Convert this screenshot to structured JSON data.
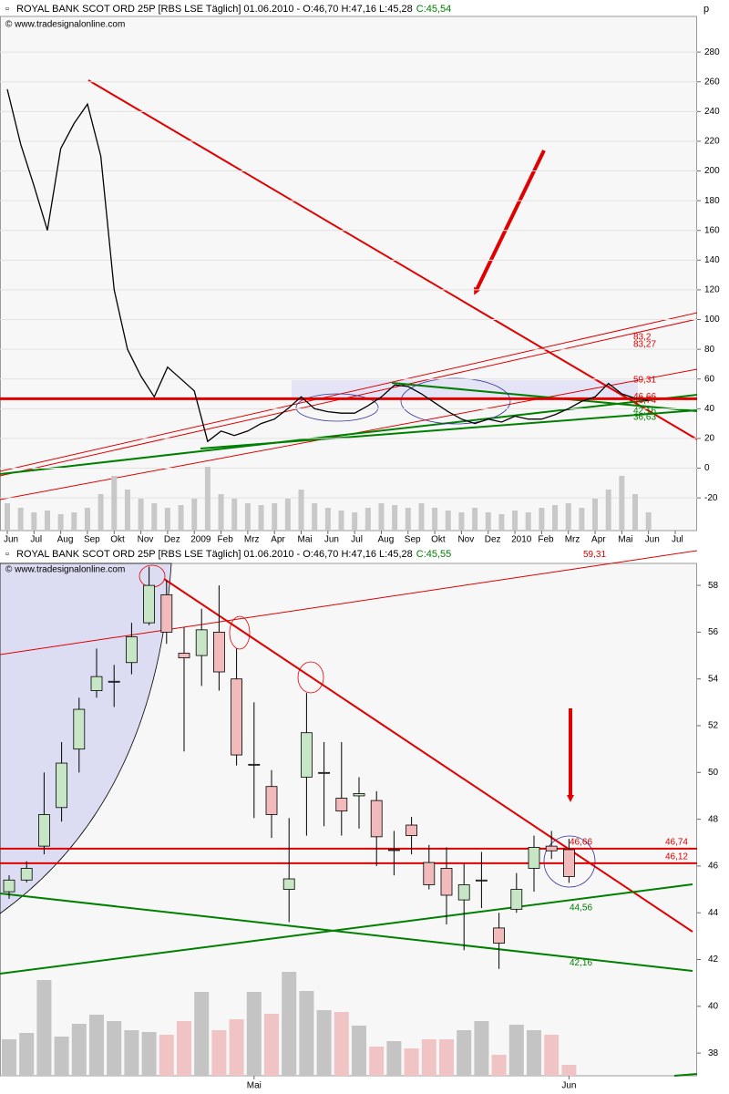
{
  "chart_data": [
    {
      "type": "line",
      "title": "ROYAL BANK SCOT ORD 25P [RBS LSE  Täglich] 01.06.2010 - O:46,70 H:47,16 L:45,28",
      "close_label": "C:45,54",
      "source": "© www.tradesignalonline.com",
      "unit": "p",
      "categories": [
        "Jun",
        null,
        "Jul",
        null,
        "Aug",
        null,
        "Sep",
        null,
        "Okt",
        null,
        "Nov",
        null,
        "Dez",
        null,
        "2009",
        null,
        "Feb",
        null,
        "Mrz",
        null,
        "Apr",
        null,
        "Mai",
        null,
        "Jun",
        null,
        "Jul",
        null,
        "Aug",
        null,
        "Sep",
        null,
        "Okt",
        null,
        "Nov",
        null,
        "Dez",
        null,
        "2010",
        null,
        "Feb",
        null,
        "Mrz",
        null,
        "Apr",
        null,
        "Mai",
        null,
        "Jun",
        null,
        "Jul",
        null
      ],
      "series": [
        {
          "name": "RBS",
          "color": "#000000",
          "values": [
            255,
            218,
            190,
            160,
            215,
            232,
            245,
            210,
            120,
            80,
            62,
            48,
            68,
            60,
            52,
            18,
            25,
            22,
            25,
            30,
            33,
            40,
            48,
            40,
            38,
            37,
            37,
            42,
            48,
            56,
            55,
            50,
            44,
            38,
            33,
            30,
            33,
            31,
            35,
            33,
            33,
            36,
            40,
            45,
            48,
            57,
            50,
            47,
            45.54,
            null,
            null,
            null
          ]
        },
        {
          "name": "Volume",
          "color": "#c8c8c8",
          "values": [
            30,
            25,
            20,
            22,
            18,
            20,
            25,
            40,
            60,
            45,
            35,
            30,
            25,
            28,
            35,
            70,
            40,
            35,
            30,
            28,
            30,
            35,
            45,
            30,
            25,
            22,
            20,
            25,
            30,
            28,
            25,
            30,
            25,
            22,
            20,
            25,
            20,
            18,
            22,
            20,
            25,
            28,
            30,
            25,
            35,
            45,
            60,
            40,
            20,
            null,
            null,
            null
          ]
        }
      ],
      "ylim": [
        -42,
        304
      ],
      "yticks": [
        -20,
        0,
        20,
        40,
        60,
        80,
        100,
        120,
        140,
        160,
        180,
        200,
        220,
        240,
        260,
        280
      ],
      "grid": true,
      "reference_line": {
        "value": 46.74,
        "color": "#e00000"
      },
      "annotations": [
        {
          "value": 83.2,
          "label": "83,2",
          "color": "#e00000"
        },
        {
          "value": 83.27,
          "label": "83,27",
          "color": "#e00000"
        },
        {
          "value": 59.31,
          "label": "59,31",
          "color": "#e00000"
        },
        {
          "value": 46.66,
          "label": "46,66",
          "color": "#e00000"
        },
        {
          "value": 46.74,
          "label": "46,74",
          "color": "#e00000"
        },
        {
          "value": 42.16,
          "label": "42,16",
          "color": "#008000"
        },
        {
          "value": 36.63,
          "label": "36,63",
          "color": "#008000"
        }
      ]
    },
    {
      "type": "candlestick",
      "title": "ROYAL BANK SCOT ORD 25P [RBS LSE  Täglich] 01.06.2010 - O:46,70 H:47,16 L:45,28",
      "close_label": "C:45,55",
      "source": "© www.tradesignalonline.com",
      "categories": [
        null,
        null,
        null,
        null,
        null,
        null,
        null,
        null,
        null,
        null,
        null,
        null,
        null,
        null,
        "Mai",
        null,
        null,
        null,
        null,
        null,
        null,
        null,
        null,
        null,
        null,
        null,
        null,
        null,
        null,
        null,
        null,
        null,
        "Jun"
      ],
      "open": [
        44.9,
        45.4,
        46.85,
        48.5,
        51.0,
        53.5,
        53.9,
        54.7,
        56.4,
        57.6,
        55.1,
        55.0,
        56.0,
        54.0,
        50.35,
        49.4,
        45.0,
        49.8,
        50.0,
        48.9,
        49.0,
        48.8,
        46.7,
        47.75,
        46.15,
        45.9,
        44.55,
        45.4,
        43.35,
        44.15,
        45.9,
        46.85,
        46.7
      ],
      "high": [
        45.6,
        46.2,
        50.0,
        51.3,
        53.2,
        55.3,
        54.6,
        56.4,
        58.8,
        58.2,
        56.2,
        57.0,
        58.0,
        55.3,
        53.0,
        50.1,
        48.05,
        53.4,
        51.3,
        51.3,
        49.8,
        49.2,
        47.5,
        48.1,
        46.9,
        46.8,
        46.1,
        46.6,
        44.0,
        45.7,
        47.3,
        47.5,
        47.16
      ],
      "low": [
        44.6,
        45.3,
        46.5,
        47.9,
        50.0,
        53.2,
        52.8,
        54.2,
        56.3,
        55.5,
        50.9,
        53.7,
        53.5,
        50.3,
        48.05,
        47.2,
        43.6,
        47.3,
        47.7,
        47.3,
        47.6,
        46.0,
        45.6,
        46.5,
        45.0,
        43.5,
        42.4,
        44.2,
        41.6,
        44.0,
        44.9,
        46.3,
        45.28
      ],
      "close": [
        45.4,
        45.9,
        48.2,
        50.4,
        52.7,
        54.1,
        53.9,
        55.8,
        58.0,
        56.0,
        54.9,
        56.1,
        54.3,
        50.75,
        50.35,
        48.2,
        45.45,
        51.7,
        50.0,
        48.35,
        49.1,
        47.25,
        46.7,
        47.3,
        45.2,
        44.75,
        45.2,
        45.4,
        42.7,
        45.0,
        46.8,
        46.65,
        45.55
      ],
      "up_color": "#c6e6c6",
      "down_color": "#f2baba",
      "volume": {
        "values": [
          40,
          47,
          105,
          43,
          57,
          67,
          60,
          50,
          48,
          45,
          60,
          92,
          50,
          62,
          92,
          68,
          114,
          93,
          72,
          70,
          55,
          32,
          38,
          30,
          40,
          40,
          50,
          60,
          23,
          56,
          50,
          45,
          12
        ],
        "up_color": "#c4c4c4",
        "down_color": "#f0c4c4"
      },
      "ylim": [
        37.03,
        58.94
      ],
      "yticks": [
        38,
        40,
        42,
        44,
        46,
        48,
        50,
        52,
        54,
        56,
        58
      ],
      "reference_lines": [
        {
          "value": 46.74,
          "label": "46,74",
          "color": "#e00000"
        },
        {
          "value": 46.12,
          "label": "46,12",
          "color": "#e00000"
        }
      ],
      "annotations": [
        {
          "value": 59.31,
          "label": "59,31",
          "color": "#e00000"
        },
        {
          "value": 46.66,
          "label": "46,66",
          "color": "#e00000"
        },
        {
          "value": 44.56,
          "label": "44,56",
          "color": "#008000"
        },
        {
          "value": 42.16,
          "label": "42,16",
          "color": "#008000"
        }
      ]
    }
  ]
}
